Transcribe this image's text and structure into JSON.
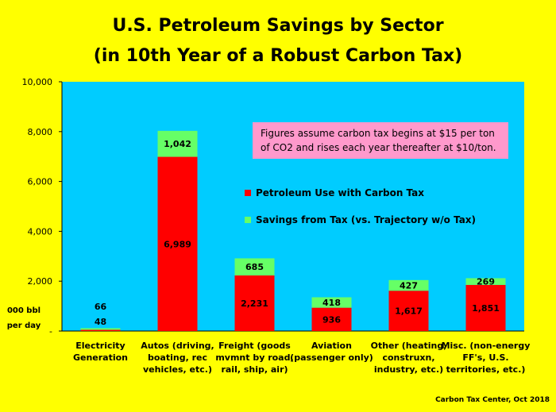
{
  "title_line1": "U.S. Petroleum Savings by Sector",
  "title_line2": "(in 10th Year of a Robust Carbon Tax)",
  "y_unit_label": "000 bbl per day",
  "annotation": "Figures assume carbon tax begins at $15 per ton of CO2 and rises each year thereafter at $10/ton.",
  "credit": "Carbon Tax Center, Oct 2018",
  "colors": {
    "background": "#ffff00",
    "plot_area": "#00ccff",
    "petroleum_use": "#ff0000",
    "savings": "#66ff66",
    "annotation_box": "#ff99cc"
  },
  "chart_data": {
    "type": "bar",
    "stacked": true,
    "title": "U.S. Petroleum Savings by Sector (in 10th Year of a Robust Carbon Tax)",
    "categories": [
      [
        "Electricity",
        "Generation"
      ],
      [
        "Autos (driving,",
        "boating, rec",
        "vehicles, etc.)"
      ],
      [
        "Freight (goods",
        "mvmnt by road,",
        "rail, ship, air)"
      ],
      [
        "Aviation",
        "(passenger only)"
      ],
      [
        "Other (heating,",
        "construxn,",
        "industry, etc.)"
      ],
      [
        "Misc. (non-energy",
        "FF's, U.S.",
        "territories, etc.)"
      ]
    ],
    "series": [
      {
        "name": "Petroleum Use with Carbon Tax",
        "values": [
          48,
          6989,
          2231,
          936,
          1617,
          1851
        ]
      },
      {
        "name": "Savings from Tax (vs. Trajectory w/o Tax)",
        "values": [
          66,
          1042,
          685,
          418,
          427,
          269
        ]
      }
    ],
    "data_labels": [
      [
        "48",
        "6,989",
        "2,231",
        "936",
        "1,617",
        "1,851"
      ],
      [
        "66",
        "1,042",
        "685",
        "418",
        "427",
        "269"
      ]
    ],
    "ylim": [
      0,
      10000
    ],
    "yticks": [
      "10,000",
      "8,000",
      "6,000",
      "4,000",
      "2,000",
      "-"
    ],
    "ytick_values": [
      10000,
      8000,
      6000,
      4000,
      2000,
      0
    ],
    "ylabel": "000 bbl per day",
    "grid": false,
    "legend_position": "inside-center"
  }
}
